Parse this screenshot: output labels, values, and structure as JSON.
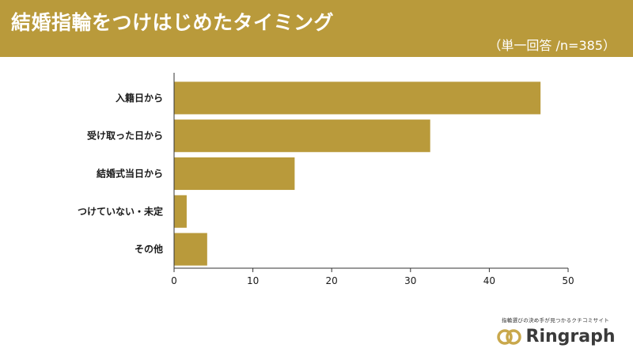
{
  "header": {
    "title": "結婚指輪をつけはじめたタイミング",
    "subtitle": "（単一回答 /n=385）"
  },
  "chart_data": {
    "type": "bar",
    "orientation": "horizontal",
    "categories": [
      "入籍日から",
      "受け取った日から",
      "結婚式当日から",
      "つけていない・未定",
      "その他"
    ],
    "values": [
      46.5,
      32.5,
      15.3,
      1.6,
      4.2
    ],
    "xlim": [
      0,
      50
    ],
    "xticks": [
      0,
      10,
      20,
      30,
      40,
      50
    ],
    "grid": false,
    "bar_color": "#b99a3b"
  },
  "brand": {
    "tagline": "指輪選びの決め手が見つかるクチコミサイト",
    "name": "Ringraph",
    "logo_color": "#c9a84c"
  }
}
